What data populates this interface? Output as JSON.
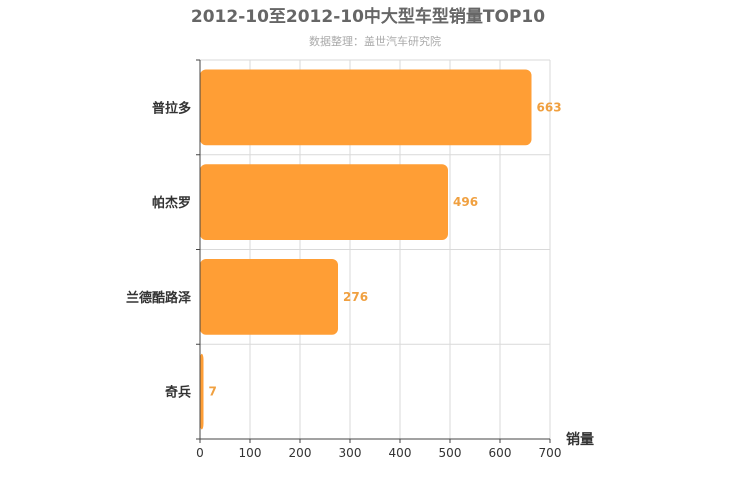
{
  "chart_data": {
    "type": "bar",
    "orientation": "horizontal",
    "title": "2012-10至2012-10中大型车型销量TOP10",
    "subtitle": "数据整理：盖世汽车研究院",
    "xlabel": "销量",
    "ylabel": "",
    "categories": [
      "普拉多",
      "帕杰罗",
      "兰德酷路泽",
      "奇兵"
    ],
    "values": [
      663,
      496,
      276,
      7
    ],
    "xlim": [
      0,
      700
    ],
    "xticks": [
      0,
      100,
      200,
      300,
      400,
      500,
      600,
      700
    ],
    "grid": true,
    "legend": "none",
    "colors": {
      "bar": "#ff9e35",
      "label": "#f0a040",
      "title": "#666666",
      "subtitle": "#aaaaaa",
      "axis_text": "#333333",
      "grid": "#d9d9d9",
      "axis": "#444444"
    }
  }
}
